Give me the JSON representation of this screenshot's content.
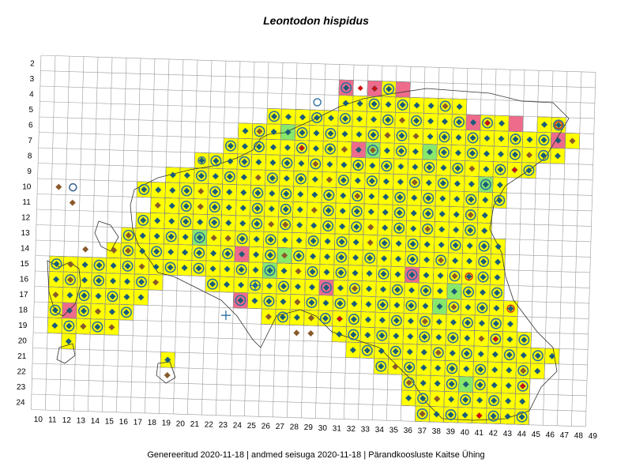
{
  "title": "Leontodon hispidus",
  "footer": "Genereeritud 2020-11-18  |  andmed seisuga 2020-11-18  |  Pärandkoosluste Kaitse Ühing",
  "grid": {
    "row_labels": [
      "2",
      "3",
      "4",
      "5",
      "6",
      "7",
      "8",
      "9",
      "10",
      "11",
      "12",
      "13",
      "14",
      "15",
      "16",
      "17",
      "18",
      "19",
      "20",
      "21",
      "22",
      "23",
      "24"
    ],
    "col_labels": [
      "10",
      "11",
      "12",
      "13",
      "14",
      "15",
      "16",
      "17",
      "18",
      "19",
      "20",
      "21",
      "22",
      "23",
      "24",
      "25",
      "26",
      "27",
      "28",
      "29",
      "30",
      "31",
      "32",
      "33",
      "34",
      "35",
      "36",
      "37",
      "38",
      "39",
      "40",
      "41",
      "42",
      "43",
      "44",
      "45",
      "46",
      "47",
      "48",
      "49"
    ]
  },
  "colors": {
    "yellow": "#ffff00",
    "pink": "#ee6b8b",
    "green": "#88e86a",
    "diamond_blue": "#1a5d7a",
    "diamond_brown": "#8a5a2b",
    "diamond_red": "#d01010",
    "ring_green": "#4a9a3a",
    "ring_blue": "#2a6fa0",
    "ring_red": "#d02020",
    "grid": "#9a9a9a",
    "coast": "#333333"
  },
  "map_cells": {
    "yellow_rows": [
      {
        "row": 3,
        "cols": [
          31,
          33,
          34
        ]
      },
      {
        "row": 4,
        "cols": [
          31,
          32,
          33,
          34,
          35,
          36,
          37,
          38,
          39
        ]
      },
      {
        "row": 5,
        "cols": [
          26,
          27,
          28,
          29,
          30,
          31,
          32,
          33,
          34,
          35,
          36,
          37,
          38,
          39,
          40,
          41,
          42,
          45,
          46
        ]
      },
      {
        "row": 6,
        "cols": [
          24,
          25,
          26,
          27,
          28,
          29,
          30,
          31,
          32,
          33,
          34,
          35,
          36,
          37,
          38,
          39,
          40,
          41,
          42,
          43,
          44,
          45,
          46,
          47
        ]
      },
      {
        "row": 7,
        "cols": [
          23,
          24,
          25,
          26,
          27,
          28,
          29,
          30,
          31,
          32,
          33,
          34,
          35,
          36,
          37,
          38,
          39,
          40,
          41,
          42,
          43,
          44,
          45,
          46
        ]
      },
      {
        "row": 8,
        "cols": [
          21,
          22,
          23,
          24,
          25,
          26,
          27,
          28,
          29,
          30,
          31,
          32,
          33,
          34,
          35,
          36,
          37,
          38,
          39,
          40,
          41,
          42,
          43,
          44
        ]
      },
      {
        "row": 9,
        "cols": [
          19,
          20,
          21,
          22,
          23,
          24,
          25,
          26,
          27,
          28,
          29,
          30,
          31,
          32,
          33,
          34,
          35,
          36,
          37,
          38,
          39,
          40,
          41,
          42
        ]
      },
      {
        "row": 10,
        "cols": [
          17,
          18,
          19,
          20,
          21,
          22,
          23,
          24,
          25,
          26,
          27,
          28,
          29,
          30,
          31,
          32,
          33,
          34,
          35,
          36,
          37,
          38,
          39,
          40,
          41,
          42
        ]
      },
      {
        "row": 11,
        "cols": [
          18,
          19,
          20,
          21,
          22,
          23,
          24,
          25,
          26,
          27,
          28,
          29,
          30,
          31,
          32,
          33,
          34,
          35,
          36,
          37,
          38,
          39,
          40,
          41
        ]
      },
      {
        "row": 12,
        "cols": [
          17,
          18,
          19,
          20,
          21,
          22,
          23,
          24,
          25,
          26,
          27,
          28,
          29,
          30,
          31,
          32,
          33,
          34,
          35,
          36,
          37,
          38,
          39,
          40,
          41
        ]
      },
      {
        "row": 13,
        "cols": [
          16,
          17,
          18,
          19,
          20,
          21,
          22,
          23,
          24,
          25,
          26,
          27,
          28,
          29,
          30,
          31,
          32,
          33,
          34,
          35,
          36,
          37,
          38,
          39,
          40,
          41,
          42
        ]
      },
      {
        "row": 14,
        "cols": [
          15,
          16,
          17,
          18,
          19,
          20,
          21,
          22,
          23,
          24,
          25,
          26,
          27,
          28,
          29,
          30,
          31,
          32,
          33,
          34,
          35,
          36,
          37,
          38,
          39,
          40,
          41,
          42
        ]
      },
      {
        "row": 15,
        "cols": [
          11,
          12,
          13,
          14,
          15,
          16,
          17,
          18,
          19,
          20,
          21,
          22,
          23,
          24,
          25,
          26,
          27,
          28,
          29,
          30,
          31,
          32,
          33,
          34,
          35,
          36,
          37,
          38,
          39,
          40,
          41,
          42
        ]
      },
      {
        "row": 16,
        "cols": [
          11,
          12,
          13,
          14,
          15,
          16,
          17,
          18,
          22,
          23,
          24,
          25,
          26,
          27,
          28,
          29,
          30,
          31,
          32,
          33,
          34,
          35,
          36,
          37,
          38,
          39,
          40,
          41,
          42
        ]
      },
      {
        "row": 17,
        "cols": [
          11,
          12,
          13,
          14,
          15,
          16,
          17,
          24,
          25,
          26,
          27,
          28,
          29,
          30,
          31,
          32,
          33,
          34,
          35,
          36,
          37,
          38,
          39,
          40,
          41,
          42,
          43
        ]
      },
      {
        "row": 18,
        "cols": [
          11,
          12,
          13,
          14,
          15,
          16,
          26,
          27,
          28,
          29,
          30,
          31,
          32,
          33,
          34,
          35,
          36,
          37,
          38,
          39,
          40,
          41,
          42,
          43
        ]
      },
      {
        "row": 19,
        "cols": [
          11,
          12,
          13,
          14,
          15,
          31,
          32,
          33,
          34,
          35,
          36,
          37,
          38,
          39,
          40,
          41,
          42,
          43,
          44
        ]
      },
      {
        "row": 20,
        "cols": [
          12,
          32,
          33,
          34,
          35,
          36,
          37,
          38,
          39,
          40,
          41,
          42,
          43,
          44,
          45,
          46
        ]
      },
      {
        "row": 21,
        "cols": [
          19,
          34,
          35,
          36,
          37,
          38,
          39,
          40,
          41,
          42,
          43,
          44,
          45
        ]
      },
      {
        "row": 22,
        "cols": [
          36,
          37,
          38,
          39,
          40,
          41,
          42,
          43,
          44
        ]
      },
      {
        "row": 23,
        "cols": [
          36,
          37,
          38,
          39,
          40,
          41,
          42,
          43,
          44
        ]
      },
      {
        "row": 24,
        "cols": [
          37,
          38,
          39,
          40,
          41,
          42,
          43,
          44
        ]
      }
    ],
    "pink_cells": [
      [
        3,
        31
      ],
      [
        3,
        33
      ],
      [
        3,
        35
      ],
      [
        5,
        43
      ],
      [
        5,
        40
      ],
      [
        6,
        46
      ],
      [
        7,
        32
      ],
      [
        14,
        24
      ],
      [
        14,
        27
      ],
      [
        15,
        36
      ],
      [
        16,
        30
      ],
      [
        17,
        24
      ],
      [
        18,
        12
      ]
    ],
    "green_cells": [
      [
        6,
        27
      ],
      [
        7,
        33
      ],
      [
        7,
        37
      ],
      [
        9,
        41
      ],
      [
        13,
        21
      ],
      [
        14,
        27
      ],
      [
        15,
        26
      ],
      [
        16,
        39
      ],
      [
        17,
        38
      ],
      [
        22,
        40
      ]
    ]
  },
  "markers": {
    "brown_diamonds": [
      [
        10,
        11
      ],
      [
        11,
        12
      ],
      [
        12,
        27
      ],
      [
        13,
        16
      ],
      [
        14,
        13
      ],
      [
        15,
        12
      ],
      [
        16,
        12
      ],
      [
        17,
        28
      ],
      [
        18,
        29
      ],
      [
        18,
        14
      ],
      [
        19,
        13
      ],
      [
        19,
        28
      ],
      [
        19,
        29
      ],
      [
        21,
        44
      ],
      [
        22,
        19
      ],
      [
        23,
        38
      ],
      [
        24,
        37
      ],
      [
        24,
        41
      ],
      [
        11,
        21
      ],
      [
        12,
        33
      ],
      [
        13,
        23
      ],
      [
        14,
        15
      ],
      [
        9,
        30
      ],
      [
        6,
        34
      ],
      [
        7,
        31
      ]
    ],
    "red_diamonds": [
      [
        3,
        32
      ],
      [
        3,
        33
      ],
      [
        5,
        41
      ],
      [
        7,
        28
      ],
      [
        8,
        43
      ],
      [
        18,
        31
      ],
      [
        19,
        42
      ],
      [
        22,
        44
      ],
      [
        24,
        41
      ]
    ],
    "red_rings": [
      [
        5,
        46
      ],
      [
        10,
        12
      ],
      [
        15,
        40
      ],
      [
        17,
        43
      ]
    ],
    "blue_rings": [
      [
        10,
        12
      ],
      [
        4,
        29
      ],
      [
        8,
        21
      ]
    ],
    "plus_marks": [
      [
        16,
        25
      ],
      [
        18,
        23
      ]
    ]
  }
}
